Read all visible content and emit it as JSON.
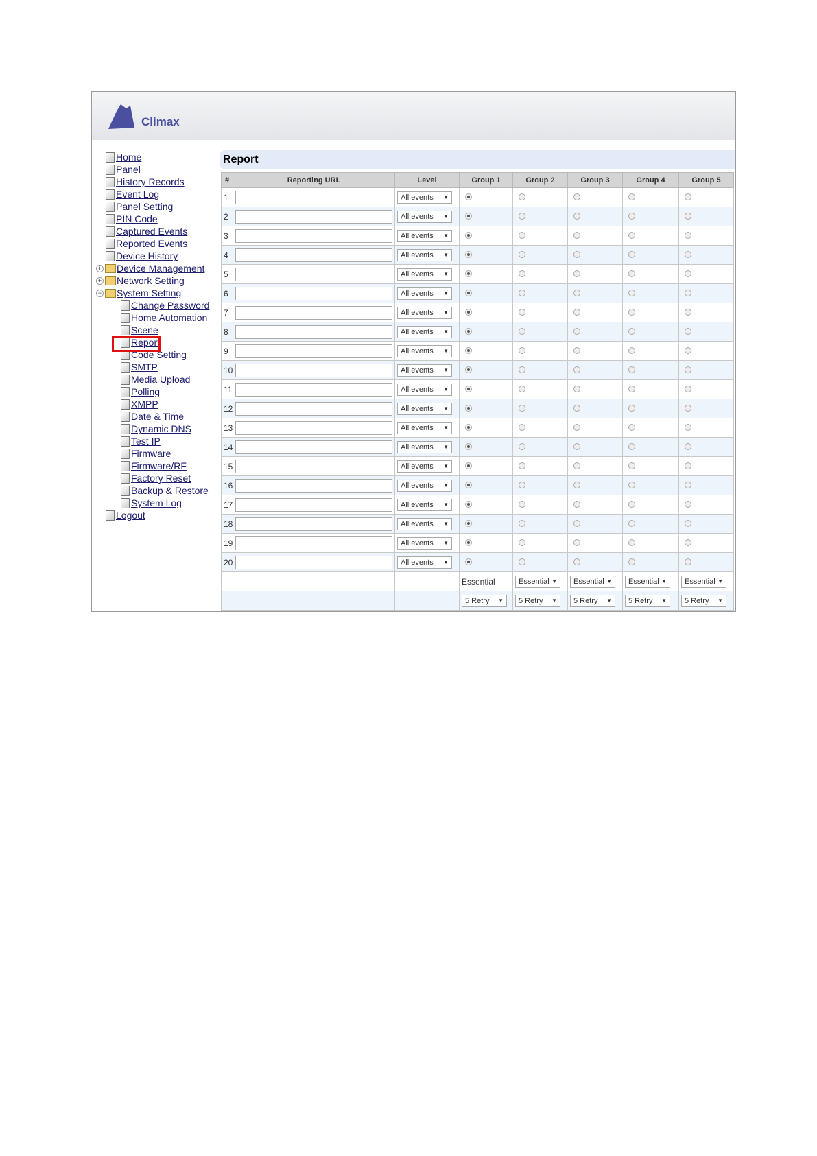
{
  "brand": {
    "logo_text": "Climax"
  },
  "sidebar": {
    "items": [
      {
        "label": "Home",
        "type": "page",
        "level": 0
      },
      {
        "label": "Panel",
        "type": "page",
        "level": 0
      },
      {
        "label": "History Records",
        "type": "page",
        "level": 0
      },
      {
        "label": "Event Log",
        "type": "page",
        "level": 0
      },
      {
        "label": "Panel Setting",
        "type": "page",
        "level": 0
      },
      {
        "label": "PIN Code",
        "type": "page",
        "level": 0
      },
      {
        "label": "Captured Events",
        "type": "page",
        "level": 0
      },
      {
        "label": "Reported Events",
        "type": "page",
        "level": 0
      },
      {
        "label": "Device History",
        "type": "page",
        "level": 0
      },
      {
        "label": "Device Management",
        "type": "folder",
        "expand": "+",
        "level": 0
      },
      {
        "label": "Network Setting",
        "type": "folder",
        "expand": "+",
        "level": 0
      },
      {
        "label": "System Setting",
        "type": "folder",
        "expand": "−",
        "level": 0
      },
      {
        "label": "Change Password",
        "type": "page",
        "level": 1
      },
      {
        "label": "Home Automation",
        "type": "page",
        "level": 1
      },
      {
        "label": "Scene",
        "type": "page",
        "level": 1
      },
      {
        "label": "Report",
        "type": "page",
        "level": 1,
        "highlighted": true
      },
      {
        "label": "Code Setting",
        "type": "page",
        "level": 1
      },
      {
        "label": "SMTP",
        "type": "page",
        "level": 1
      },
      {
        "label": "Media Upload",
        "type": "page",
        "level": 1
      },
      {
        "label": "Polling",
        "type": "page",
        "level": 1
      },
      {
        "label": "XMPP",
        "type": "page",
        "level": 1
      },
      {
        "label": "Date & Time",
        "type": "page",
        "level": 1
      },
      {
        "label": "Dynamic DNS",
        "type": "page",
        "level": 1
      },
      {
        "label": "Test IP",
        "type": "page",
        "level": 1
      },
      {
        "label": "Firmware",
        "type": "page",
        "level": 1
      },
      {
        "label": "Firmware/RF",
        "type": "page",
        "level": 1
      },
      {
        "label": "Factory Reset",
        "type": "page",
        "level": 1
      },
      {
        "label": "Backup & Restore",
        "type": "page",
        "level": 1
      },
      {
        "label": "System Log",
        "type": "page",
        "level": 1
      },
      {
        "label": "Logout",
        "type": "page",
        "level": 0
      }
    ]
  },
  "main": {
    "title": "Report",
    "columns": [
      "#",
      "Reporting URL",
      "Level",
      "Group 1",
      "Group 2",
      "Group 3",
      "Group 4",
      "Group 5"
    ],
    "rows": [
      {
        "n": "1",
        "url": "",
        "level": "All events",
        "group": 1
      },
      {
        "n": "2",
        "url": "",
        "level": "All events",
        "group": 1
      },
      {
        "n": "3",
        "url": "",
        "level": "All events",
        "group": 1
      },
      {
        "n": "4",
        "url": "",
        "level": "All events",
        "group": 1
      },
      {
        "n": "5",
        "url": "",
        "level": "All events",
        "group": 1
      },
      {
        "n": "6",
        "url": "",
        "level": "All events",
        "group": 1
      },
      {
        "n": "7",
        "url": "",
        "level": "All events",
        "group": 1
      },
      {
        "n": "8",
        "url": "",
        "level": "All events",
        "group": 1
      },
      {
        "n": "9",
        "url": "",
        "level": "All events",
        "group": 1
      },
      {
        "n": "10",
        "url": "",
        "level": "All events",
        "group": 1
      },
      {
        "n": "11",
        "url": "",
        "level": "All events",
        "group": 1
      },
      {
        "n": "12",
        "url": "",
        "level": "All events",
        "group": 1
      },
      {
        "n": "13",
        "url": "",
        "level": "All events",
        "group": 1
      },
      {
        "n": "14",
        "url": "",
        "level": "All events",
        "group": 1
      },
      {
        "n": "15",
        "url": "",
        "level": "All events",
        "group": 1
      },
      {
        "n": "16",
        "url": "",
        "level": "All events",
        "group": 1
      },
      {
        "n": "17",
        "url": "",
        "level": "All events",
        "group": 1
      },
      {
        "n": "18",
        "url": "",
        "level": "All events",
        "group": 1
      },
      {
        "n": "19",
        "url": "",
        "level": "All events",
        "group": 1
      },
      {
        "n": "20",
        "url": "",
        "level": "All events",
        "group": 1
      }
    ],
    "group_type": [
      "Essential",
      "Essential",
      "Essential",
      "Essential",
      "Essential"
    ],
    "group_retry": [
      "5 Retry",
      "5 Retry",
      "5 Retry",
      "5 Retry",
      "5 Retry"
    ]
  },
  "colors": {
    "link": "#1c1c6c",
    "highlight_box": "#e01010",
    "title_bar": "#e4ebf8",
    "alt_row": "#eef4fc"
  }
}
